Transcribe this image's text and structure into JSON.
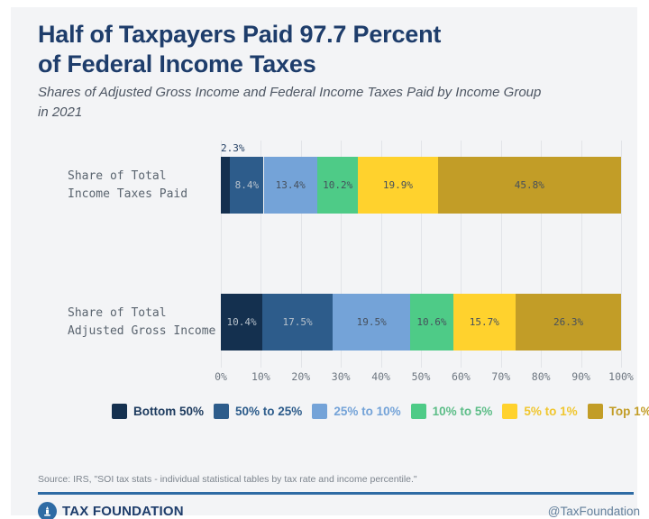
{
  "header": {
    "title_lines": [
      "Half of Taxpayers Paid 97.7 Percent",
      "of Federal Income Taxes"
    ],
    "subtitle_lines": [
      "Shares of Adjusted Gross Income and Federal Income Taxes Paid by Income Group",
      "in 2021"
    ]
  },
  "chart_data": {
    "type": "bar",
    "orientation": "horizontal-stacked",
    "categories": [
      "Share of Total\nIncome Taxes Paid",
      "Share of Total\nAdjusted Gross Income"
    ],
    "series": [
      {
        "name": "Bottom 50%",
        "values": [
          2.3,
          10.4
        ],
        "color": "#14304f",
        "legend_text_color": "#1c3a5e",
        "label_style": "light"
      },
      {
        "name": "50% to 25%",
        "values": [
          8.4,
          17.5
        ],
        "color": "#2d5c8b",
        "legend_text_color": "#2d5c8b",
        "label_style": "light"
      },
      {
        "name": "25% to 10%",
        "values": [
          13.4,
          19.5
        ],
        "color": "#74a3d8",
        "legend_text_color": "#74a3d8",
        "label_style": "dark"
      },
      {
        "name": "10% to 5%",
        "values": [
          10.2,
          10.6
        ],
        "color": "#4ecb87",
        "legend_text_color": "#5cbd87",
        "label_style": "dark"
      },
      {
        "name": "5% to 1%",
        "values": [
          19.9,
          15.7
        ],
        "color": "#ffd22d",
        "legend_text_color": "#f0c62e",
        "label_style": "dark"
      },
      {
        "name": "Top 1%",
        "values": [
          45.8,
          26.3
        ],
        "color": "#c29d27",
        "legend_text_color": "#c29d27",
        "label_style": "dark"
      }
    ],
    "x_ticks": [
      "0%",
      "10%",
      "20%",
      "30%",
      "40%",
      "50%",
      "60%",
      "70%",
      "80%",
      "90%",
      "100%"
    ],
    "xlim": [
      0,
      100
    ],
    "grid": true,
    "legend_position": "bottom",
    "value_label_format": "percent_one_decimal"
  },
  "footer": {
    "source": "Source: IRS, \"SOI tax stats - individual statistical tables by tax rate and income percentile.\"",
    "brand": "TAX FOUNDATION",
    "handle": "@TaxFoundation"
  },
  "colors": {
    "card_background": "#f3f4f6",
    "title_navy": "#1e3d6b",
    "accent_rule_blue": "#2e6ba4",
    "gridline": "#e2e4e8",
    "light_value_label": "#b7c1cb",
    "dark_value_label": "#46505c"
  }
}
